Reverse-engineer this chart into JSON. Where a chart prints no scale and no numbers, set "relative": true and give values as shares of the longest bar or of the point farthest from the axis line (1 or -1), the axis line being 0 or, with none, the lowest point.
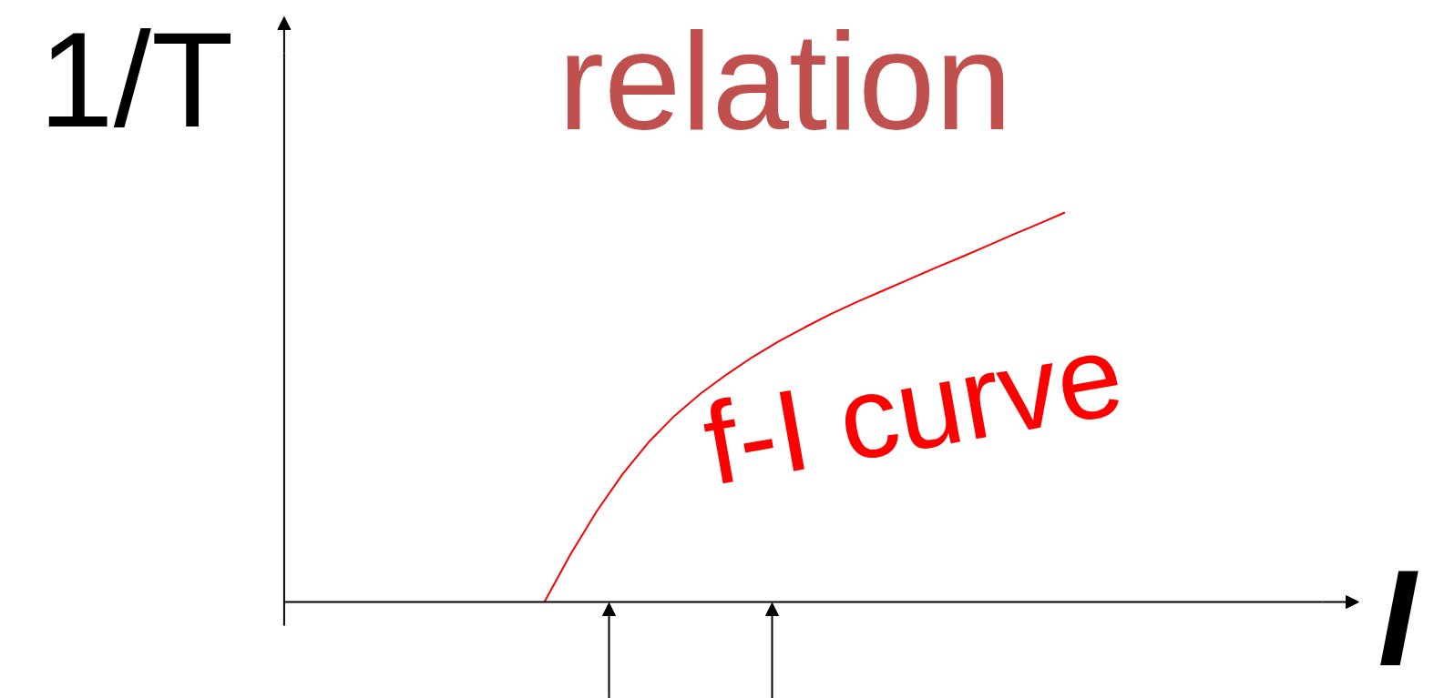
{
  "chart_data": {
    "type": "line",
    "title": "relation",
    "xlabel": "I",
    "ylabel": "1/T",
    "relative": true,
    "categories": [
      null,
      null,
      null,
      null,
      null,
      null,
      null,
      null,
      null,
      null,
      null,
      null,
      null,
      null,
      null,
      null,
      null,
      null,
      null,
      null,
      null,
      null,
      null,
      null,
      null,
      null,
      null,
      null,
      null,
      null,
      null
    ],
    "series": [
      {
        "name": "f-I curve",
        "color": "#ff0000",
        "values": [
          null,
          null,
          null,
          null,
          null,
          null,
          null,
          null,
          null,
          null,
          0,
          0.122,
          0.232,
          0.328,
          0.41,
          0.478,
          0.535,
          0.584,
          0.629,
          0.669,
          0.705,
          0.739,
          0.77,
          0.799,
          0.828,
          0.857,
          0.885,
          0.914,
          0.943,
          0.971,
          1
        ]
      }
    ]
  }
}
